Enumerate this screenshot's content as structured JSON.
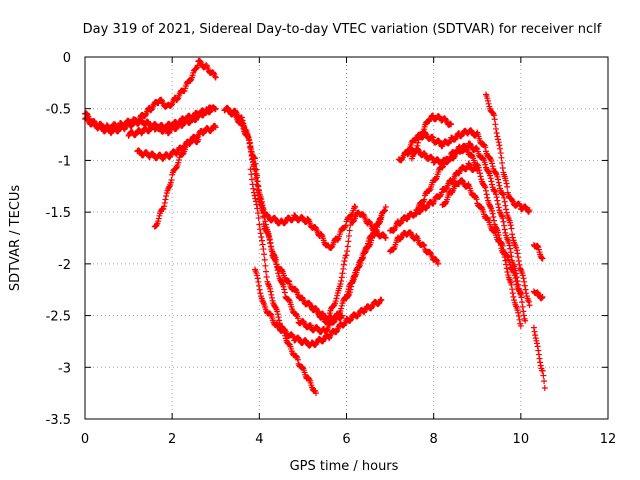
{
  "chart_data": {
    "type": "scatter",
    "title": "Day 319 of 2021, Sidereal Day-to-day VTEC variation (SDTVAR) for receiver nclf",
    "xlabel": "GPS time / hours",
    "ylabel": "SDTVAR / TECUs",
    "xlim": [
      0,
      12
    ],
    "ylim": [
      -3.5,
      0
    ],
    "xticks": [
      "0",
      "2",
      "4",
      "6",
      "8",
      "10",
      "12"
    ],
    "yticks": [
      "0",
      "-0.5",
      "-1",
      "-1.5",
      "-2",
      "-2.5",
      "-3",
      "-3.5"
    ],
    "grid": true,
    "marker": "+",
    "series_color": "#ff0000",
    "series": [
      {
        "name": "track-1",
        "x": [
          0.0,
          0.3,
          0.6,
          0.9,
          1.2,
          1.5,
          1.7,
          1.9,
          2.1,
          2.3,
          2.5,
          2.6,
          2.8,
          3.0
        ],
        "y": [
          -0.55,
          -0.68,
          -0.72,
          -0.68,
          -0.62,
          -0.5,
          -0.42,
          -0.48,
          -0.4,
          -0.3,
          -0.15,
          -0.05,
          -0.1,
          -0.2
        ]
      },
      {
        "name": "track-2",
        "x": [
          1.0,
          1.3,
          1.6,
          1.9,
          2.2,
          2.5,
          2.8,
          3.0
        ],
        "y": [
          -0.75,
          -0.72,
          -0.68,
          -0.72,
          -0.65,
          -0.6,
          -0.52,
          -0.5
        ]
      },
      {
        "name": "track-3",
        "x": [
          1.2,
          1.5,
          1.8,
          2.1,
          2.4,
          2.7,
          3.0
        ],
        "y": [
          -0.92,
          -0.95,
          -0.97,
          -0.92,
          -0.82,
          -0.72,
          -0.68
        ]
      },
      {
        "name": "track-4",
        "x": [
          1.6,
          1.8,
          2.0,
          2.2,
          2.4,
          2.6
        ],
        "y": [
          -1.65,
          -1.45,
          -1.15,
          -0.95,
          -0.82,
          -0.8
        ]
      },
      {
        "name": "track-5",
        "x": [
          0.0,
          0.2,
          0.5,
          0.8,
          1.1,
          1.4,
          1.7,
          2.0,
          2.3,
          2.6,
          2.9
        ],
        "y": [
          -0.6,
          -0.65,
          -0.68,
          -0.66,
          -0.62,
          -0.64,
          -0.68,
          -0.66,
          -0.6,
          -0.55,
          -0.5
        ]
      },
      {
        "name": "track-6",
        "x": [
          3.2,
          3.5,
          3.8,
          4.0,
          4.2,
          4.5,
          4.8,
          5.1,
          5.4,
          5.6,
          5.8,
          6.0,
          6.2
        ],
        "y": [
          -0.5,
          -0.55,
          -0.85,
          -1.4,
          -1.55,
          -1.6,
          -1.55,
          -1.58,
          -1.72,
          -1.85,
          -1.75,
          -1.6,
          -1.45
        ]
      },
      {
        "name": "track-7",
        "x": [
          3.3,
          3.6,
          3.9,
          4.1,
          4.4,
          4.7,
          5.0,
          5.3,
          5.6,
          5.9
        ],
        "y": [
          -0.52,
          -0.6,
          -1.0,
          -1.6,
          -2.0,
          -2.2,
          -2.35,
          -2.45,
          -2.55,
          -2.5
        ]
      },
      {
        "name": "track-8",
        "x": [
          3.4,
          3.7,
          4.0,
          4.3,
          4.6,
          4.9,
          5.2,
          5.5,
          5.8
        ],
        "y": [
          -0.55,
          -0.7,
          -1.3,
          -1.9,
          -2.3,
          -2.55,
          -2.62,
          -2.65,
          -2.5
        ]
      },
      {
        "name": "track-9",
        "x": [
          3.8,
          4.0,
          4.2,
          4.5,
          4.7,
          4.9,
          5.1,
          5.3
        ],
        "y": [
          -1.1,
          -1.6,
          -2.2,
          -2.6,
          -2.8,
          -2.95,
          -3.1,
          -3.25
        ]
      },
      {
        "name": "track-10",
        "x": [
          3.9,
          4.1,
          4.4,
          4.8,
          5.2,
          5.6,
          6.0,
          6.4,
          6.8
        ],
        "y": [
          -2.05,
          -2.4,
          -2.6,
          -2.72,
          -2.78,
          -2.7,
          -2.55,
          -2.45,
          -2.35
        ]
      },
      {
        "name": "track-11",
        "x": [
          5.2,
          5.5,
          5.8,
          6.0,
          6.2,
          6.4,
          6.6,
          6.8,
          6.9
        ],
        "y": [
          -2.4,
          -2.55,
          -2.5,
          -2.3,
          -2.1,
          -1.9,
          -1.7,
          -1.55,
          -1.45
        ]
      },
      {
        "name": "track-12",
        "x": [
          5.6,
          5.8,
          6.0,
          6.1,
          6.3,
          6.5,
          6.7,
          6.9
        ],
        "y": [
          -2.5,
          -2.3,
          -1.9,
          -1.6,
          -1.5,
          -1.6,
          -1.7,
          -1.75
        ]
      },
      {
        "name": "track-13",
        "x": [
          6.0,
          6.2,
          6.4,
          6.6,
          6.8
        ],
        "y": [
          -2.35,
          -2.1,
          -1.9,
          -1.75,
          -1.55
        ]
      },
      {
        "name": "track-14",
        "x": [
          7.0,
          7.2,
          7.4,
          7.6,
          7.8,
          8.0,
          8.2,
          8.4,
          8.6,
          8.8,
          9.0
        ],
        "y": [
          -1.7,
          -1.6,
          -1.55,
          -1.5,
          -1.45,
          -1.4,
          -1.3,
          -1.2,
          -1.1,
          -1.05,
          -1.1
        ]
      },
      {
        "name": "track-15",
        "x": [
          7.2,
          7.4,
          7.6,
          7.8,
          8.0,
          8.2,
          8.4,
          8.6,
          8.8,
          9.0,
          9.2,
          9.4,
          9.6,
          9.8,
          10.0
        ],
        "y": [
          -1.0,
          -0.92,
          -0.9,
          -0.95,
          -1.0,
          -1.02,
          -0.98,
          -0.9,
          -0.85,
          -0.9,
          -1.05,
          -1.3,
          -1.6,
          -1.95,
          -2.3
        ]
      },
      {
        "name": "track-16",
        "x": [
          7.4,
          7.6,
          7.8,
          8.0,
          8.2,
          8.4,
          8.6,
          8.8,
          9.0,
          9.2,
          9.4,
          9.6,
          9.8,
          10.0,
          10.2
        ],
        "y": [
          -0.9,
          -0.78,
          -0.75,
          -0.8,
          -0.85,
          -0.8,
          -0.75,
          -0.72,
          -0.75,
          -0.9,
          -1.1,
          -1.35,
          -1.7,
          -2.05,
          -2.4
        ]
      },
      {
        "name": "track-17",
        "x": [
          7.0,
          7.2,
          7.4,
          7.6,
          7.8,
          8.0,
          8.1
        ],
        "y": [
          -1.9,
          -1.75,
          -1.7,
          -1.75,
          -1.85,
          -1.95,
          -2.0
        ]
      },
      {
        "name": "track-18",
        "x": [
          7.6,
          7.8,
          8.0,
          8.2,
          8.4,
          8.6,
          8.8,
          9.0,
          9.2,
          9.4,
          9.6,
          9.8,
          10.0
        ],
        "y": [
          -1.5,
          -1.35,
          -1.2,
          -1.05,
          -0.95,
          -0.88,
          -0.92,
          -1.05,
          -1.3,
          -1.6,
          -1.9,
          -2.25,
          -2.6
        ]
      },
      {
        "name": "track-19",
        "x": [
          8.2,
          8.4,
          8.6,
          8.8,
          9.0,
          9.2,
          9.4,
          9.6,
          9.8,
          10.0,
          10.1
        ],
        "y": [
          -1.45,
          -1.3,
          -1.2,
          -1.25,
          -1.4,
          -1.55,
          -1.7,
          -1.85,
          -2.05,
          -2.3,
          -2.55
        ]
      },
      {
        "name": "track-20",
        "x": [
          9.2,
          9.4,
          9.6,
          9.7,
          9.8,
          10.0,
          10.2
        ],
        "y": [
          -0.38,
          -0.6,
          -1.1,
          -1.3,
          -1.4,
          -1.45,
          -1.48
        ]
      },
      {
        "name": "track-21",
        "x": [
          7.5,
          7.7,
          7.9,
          8.0,
          8.2,
          8.4
        ],
        "y": [
          -1.0,
          -0.75,
          -0.6,
          -0.58,
          -0.6,
          -0.65
        ]
      },
      {
        "name": "track-22",
        "x": [
          10.3,
          10.4,
          10.5,
          10.55
        ],
        "y": [
          -2.6,
          -2.85,
          -3.05,
          -3.2
        ]
      },
      {
        "name": "track-23",
        "x": [
          10.3,
          10.4,
          10.5
        ],
        "y": [
          -1.8,
          -1.85,
          -1.95
        ]
      },
      {
        "name": "track-24",
        "x": [
          10.3,
          10.4,
          10.5
        ],
        "y": [
          -2.25,
          -2.3,
          -2.32
        ]
      }
    ]
  }
}
